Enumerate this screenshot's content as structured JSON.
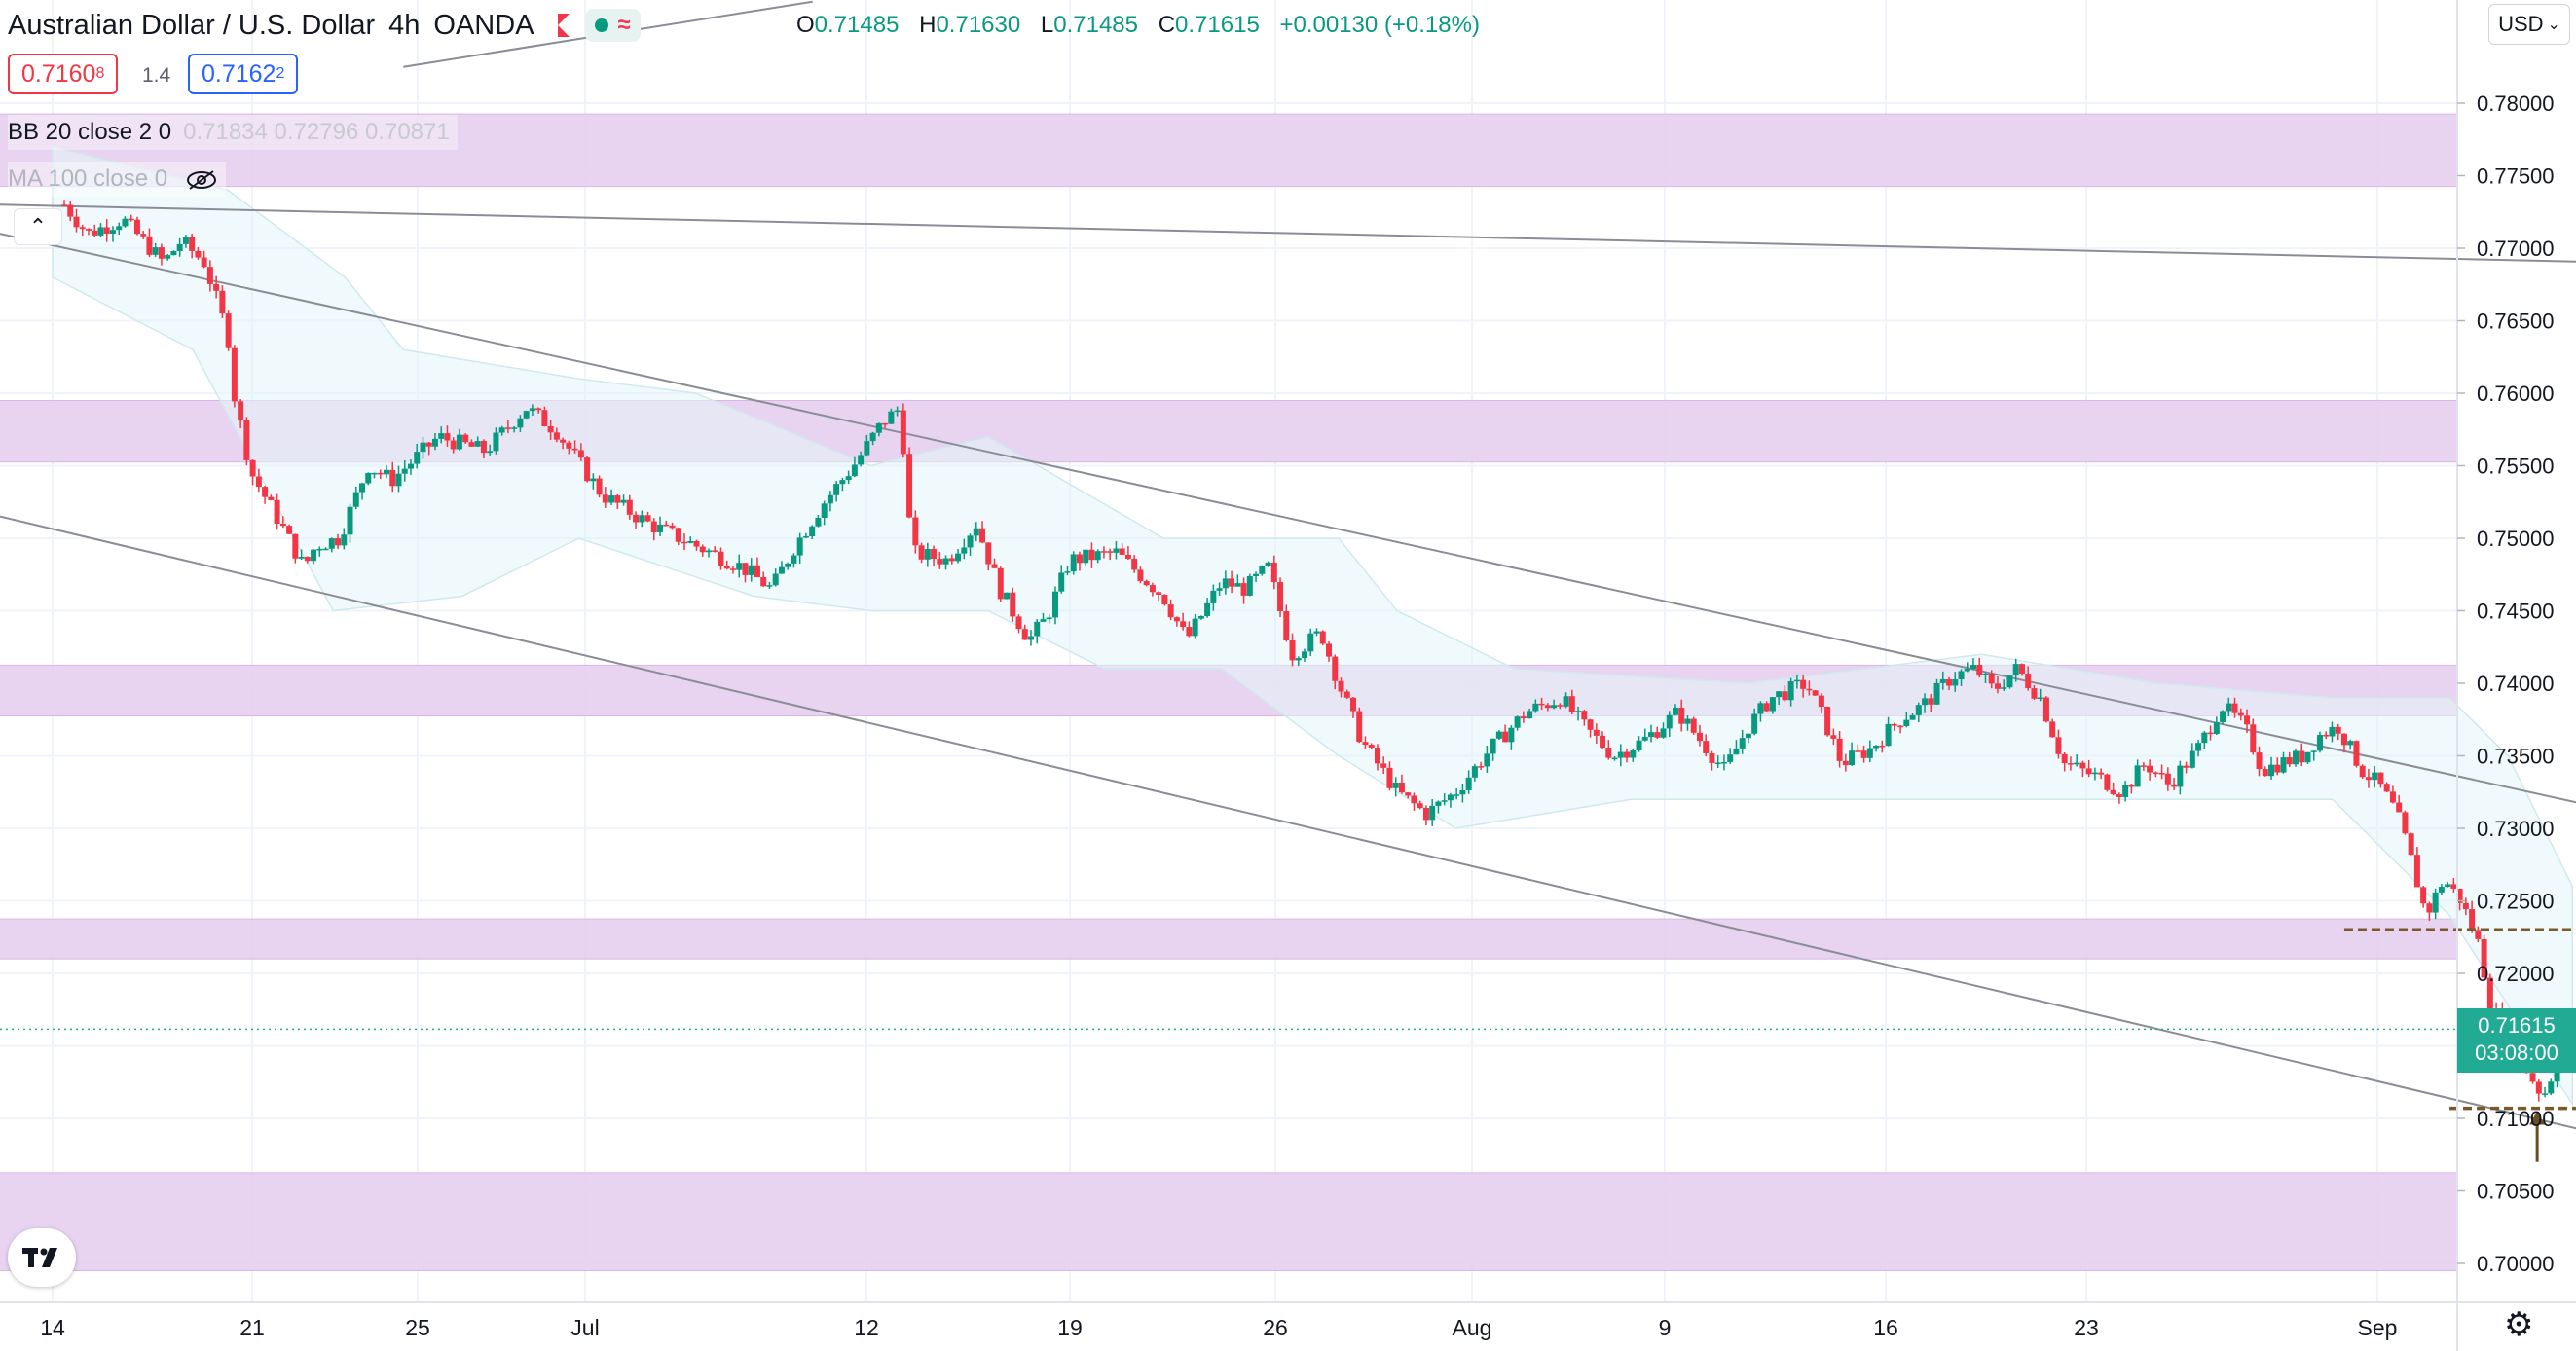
{
  "header": {
    "symbol_title": "Australian Dollar / U.S. Dollar",
    "interval": "4h",
    "broker": "OANDA",
    "live_icon": "live-dot",
    "replay_icon": "wave-icon",
    "flag_icon": "flag-icon"
  },
  "ohlc": {
    "o_label": "O",
    "o_value": "0.71485",
    "h_label": "H",
    "h_value": "0.71630",
    "l_label": "L",
    "l_value": "0.71485",
    "c_label": "C",
    "c_value": "0.71615",
    "change": "+0.00130 (+0.18%)"
  },
  "quotes": {
    "sell_main": "0.7160",
    "sell_sup": "8",
    "spread": "1.4",
    "buy_main": "0.7162",
    "buy_sup": "2"
  },
  "indicators": {
    "bb_name": "BB 20 close 2 0",
    "bb_values": "0.71834  0.72796  0.70871",
    "ma_name": "MA 100 close 0",
    "eye_icon": "eye-crossed-icon"
  },
  "collapse_icon": "chevron-up-icon",
  "currency_label": "USD",
  "current_price": {
    "price": "0.71615",
    "countdown": "03:08:00"
  },
  "colors": {
    "up": "#089981",
    "down": "#f23645",
    "zone": "#e6cff0",
    "price_tag": "#22ab94",
    "bb_fill": "#e3f4f7"
  },
  "chart_data": {
    "type": "candlestick",
    "interval": "4h",
    "ylim": [
      0.6975,
      0.7825
    ],
    "y_ticks": [
      "0.78000",
      "0.77500",
      "0.77000",
      "0.76500",
      "0.76000",
      "0.75500",
      "0.75000",
      "0.74500",
      "0.74000",
      "0.73500",
      "0.73000",
      "0.72500",
      "0.72000",
      "0.71500",
      "0.71000",
      "0.70500",
      "0.70000"
    ],
    "x_ticks": [
      "14",
      "21",
      "25",
      "Jul",
      "12",
      "19",
      "26",
      "Aug",
      "9",
      "16",
      "23",
      "Sep"
    ],
    "path_points": [
      [
        0.773,
        0.01
      ],
      [
        0.771,
        0.03
      ],
      [
        0.772,
        0.06
      ],
      [
        0.769,
        0.095
      ],
      [
        0.7705,
        0.11
      ],
      [
        0.769,
        0.13
      ],
      [
        0.764,
        0.15
      ],
      [
        0.76,
        0.155
      ],
      [
        0.7545,
        0.17
      ],
      [
        0.751,
        0.195
      ],
      [
        0.748,
        0.215
      ],
      [
        0.7495,
        0.225
      ],
      [
        0.75,
        0.245
      ],
      [
        0.755,
        0.27
      ],
      [
        0.754,
        0.29
      ],
      [
        0.757,
        0.33
      ],
      [
        0.756,
        0.37
      ],
      [
        0.759,
        0.405
      ],
      [
        0.7575,
        0.43
      ],
      [
        0.753,
        0.47
      ],
      [
        0.751,
        0.51
      ],
      [
        0.7495,
        0.55
      ],
      [
        0.748,
        0.59
      ],
      [
        0.7465,
        0.615
      ],
      [
        0.7495,
        0.635
      ],
      [
        0.7525,
        0.66
      ],
      [
        0.755,
        0.685
      ],
      [
        0.758,
        0.71
      ],
      [
        0.759,
        0.725
      ],
      [
        0.749,
        0.735
      ],
      [
        0.7485,
        0.765
      ],
      [
        0.751,
        0.79
      ],
      [
        0.7465,
        0.81
      ],
      [
        0.743,
        0.835
      ],
      [
        0.7445,
        0.85
      ],
      [
        0.7485,
        0.87
      ],
      [
        0.749,
        0.91
      ],
      [
        0.746,
        0.95
      ],
      [
        0.743,
        0.97
      ],
      [
        0.747,
        1.0
      ],
      [
        0.7465,
        1.02
      ],
      [
        0.748,
        1.04
      ],
      [
        0.742,
        1.06
      ],
      [
        0.7435,
        1.085
      ],
      [
        0.74,
        1.1
      ],
      [
        0.736,
        1.12
      ],
      [
        0.7325,
        1.15
      ],
      [
        0.731,
        1.175
      ],
      [
        0.7325,
        1.2
      ],
      [
        0.7355,
        1.23
      ],
      [
        0.738,
        1.26
      ],
      [
        0.739,
        1.29
      ],
      [
        0.737,
        1.31
      ],
      [
        0.735,
        1.335
      ],
      [
        0.736,
        1.36
      ],
      [
        0.738,
        1.39
      ],
      [
        0.736,
        1.41
      ],
      [
        0.734,
        1.43
      ],
      [
        0.737,
        1.45
      ],
      [
        0.739,
        1.47
      ],
      [
        0.74,
        1.5
      ],
      [
        0.7375,
        1.515
      ],
      [
        0.7345,
        1.53
      ],
      [
        0.7355,
        1.555
      ],
      [
        0.7375,
        1.58
      ],
      [
        0.7385,
        1.6
      ],
      [
        0.7405,
        1.625
      ],
      [
        0.741,
        1.645
      ],
      [
        0.7395,
        1.66
      ],
      [
        0.741,
        1.68
      ],
      [
        0.739,
        1.7
      ],
      [
        0.7345,
        1.72
      ],
      [
        0.7335,
        1.75
      ],
      [
        0.7325,
        1.77
      ],
      [
        0.7345,
        1.79
      ],
      [
        0.733,
        1.81
      ],
      [
        0.7355,
        1.835
      ],
      [
        0.7385,
        1.855
      ],
      [
        0.737,
        1.875
      ],
      [
        0.734,
        1.89
      ],
      [
        0.7345,
        1.905
      ],
      [
        0.735,
        1.925
      ],
      [
        0.7365,
        1.94
      ],
      [
        0.737,
        1.955
      ],
      [
        0.734,
        1.975
      ],
      [
        0.733,
        1.99
      ],
      [
        0.731,
        2.005
      ],
      [
        0.7285,
        2.015
      ],
      [
        0.724,
        2.03
      ],
      [
        0.7265,
        2.045
      ],
      [
        0.725,
        2.06
      ],
      [
        0.722,
        2.075
      ],
      [
        0.718,
        2.085
      ],
      [
        0.715,
        2.1
      ],
      [
        0.7135,
        2.115
      ],
      [
        0.7115,
        2.13
      ],
      [
        0.7135,
        2.14
      ],
      [
        0.71485,
        2.148
      ],
      [
        0.71615,
        2.155
      ]
    ],
    "bollinger_bands": {
      "upper_points": [
        [
          0.777,
          0.0
        ],
        [
          0.774,
          0.15
        ],
        [
          0.768,
          0.25
        ],
        [
          0.763,
          0.3
        ],
        [
          0.761,
          0.45
        ],
        [
          0.76,
          0.55
        ],
        [
          0.755,
          0.7
        ],
        [
          0.757,
          0.8
        ],
        [
          0.75,
          0.95
        ],
        [
          0.75,
          1.1
        ],
        [
          0.745,
          1.15
        ],
        [
          0.741,
          1.25
        ],
        [
          0.74,
          1.45
        ],
        [
          0.742,
          1.65
        ],
        [
          0.74,
          1.8
        ],
        [
          0.739,
          1.95
        ],
        [
          0.739,
          2.05
        ],
        [
          0.735,
          2.1
        ],
        [
          0.726,
          2.155
        ]
      ],
      "lower_points": [
        [
          0.768,
          0.0
        ],
        [
          0.763,
          0.12
        ],
        [
          0.745,
          0.24
        ],
        [
          0.746,
          0.35
        ],
        [
          0.75,
          0.45
        ],
        [
          0.746,
          0.6
        ],
        [
          0.745,
          0.7
        ],
        [
          0.745,
          0.8
        ],
        [
          0.741,
          0.9
        ],
        [
          0.741,
          1.0
        ],
        [
          0.735,
          1.1
        ],
        [
          0.73,
          1.2
        ],
        [
          0.732,
          1.35
        ],
        [
          0.732,
          1.5
        ],
        [
          0.732,
          1.6
        ],
        [
          0.732,
          1.7
        ],
        [
          0.732,
          1.85
        ],
        [
          0.732,
          1.95
        ],
        [
          0.724,
          2.05
        ],
        [
          0.711,
          2.155
        ]
      ]
    },
    "zones": [
      {
        "from": 0.77425,
        "to": 0.77925
      },
      {
        "from": 0.75525,
        "to": 0.7595
      },
      {
        "from": 0.73775,
        "to": 0.74125
      },
      {
        "from": 0.721,
        "to": 0.72375
      },
      {
        "from": 0.6995,
        "to": 0.70625
      }
    ],
    "dashed_levels": [
      {
        "price": 0.723,
        "x_from": 1.96,
        "x_to": 2.21
      },
      {
        "price": 0.7107,
        "x_from": 2.05,
        "x_to": 2.27
      }
    ],
    "arrow": {
      "price_tip": 0.7105,
      "price_base": 0.707,
      "x": 2.125
    },
    "trendlines": [
      {
        "p1": [
          0.0,
          0.773
        ],
        "p2": [
          2.54,
          0.7684
        ]
      },
      {
        "p1": [
          0.0,
          0.771
        ],
        "p2": [
          2.54,
          0.725
        ]
      },
      {
        "p1": [
          0.0,
          0.7515
        ],
        "p2": [
          2.54,
          0.702
        ]
      },
      {
        "p1": [
          0.3,
          0.7825
        ],
        "p2": [
          0.65,
          0.787
        ]
      }
    ],
    "last_price": 0.71615
  }
}
